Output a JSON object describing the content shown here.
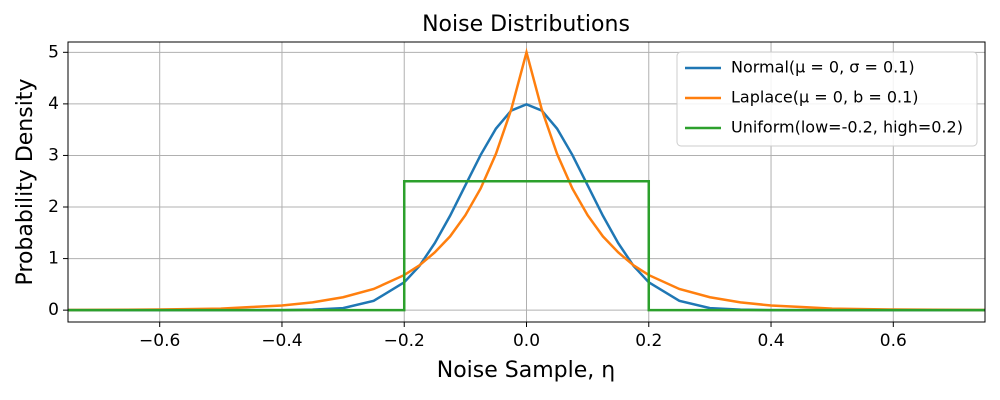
{
  "chart_data": {
    "type": "line",
    "title": "Noise Distributions",
    "x_label": "Noise Sample, η",
    "y_label": "Probability Density",
    "xlim": [
      -0.75,
      0.75
    ],
    "xticks": [
      {
        "value": -0.6,
        "label": "−0.6"
      },
      {
        "value": -0.4,
        "label": "−0.4"
      },
      {
        "value": -0.2,
        "label": "−0.2"
      },
      {
        "value": 0,
        "label": "0.0"
      },
      {
        "value": 0.2,
        "label": "0.2"
      },
      {
        "value": 0.4,
        "label": "0.4"
      },
      {
        "value": 0.6,
        "label": "0.6"
      }
    ],
    "ylim": [
      -0.23,
      5.2
    ],
    "yticks": [
      0,
      1,
      2,
      3,
      4,
      5
    ],
    "grid": true,
    "legend": "upper-right",
    "series": [
      {
        "name": "Normal(μ = 0, σ = 0.1)",
        "color": "#1f77b4",
        "x": [
          -0.75,
          -0.7,
          -0.6,
          -0.5,
          -0.45,
          -0.4,
          -0.35,
          -0.3,
          -0.25,
          -0.2,
          -0.175,
          -0.15,
          -0.125,
          -0.1,
          -0.075,
          -0.05,
          -0.025,
          0,
          0.025,
          0.05,
          0.075,
          0.1,
          0.125,
          0.15,
          0.175,
          0.2,
          0.25,
          0.3,
          0.35,
          0.4,
          0.45,
          0.5,
          0.6,
          0.7,
          0.75
        ],
        "values": [
          0,
          0,
          0,
          0,
          0,
          0,
          0.01,
          0.04,
          0.18,
          0.54,
          0.86,
          1.3,
          1.83,
          2.42,
          3.01,
          3.52,
          3.87,
          3.99,
          3.87,
          3.52,
          3.01,
          2.42,
          1.83,
          1.3,
          0.86,
          0.54,
          0.18,
          0.04,
          0.01,
          0,
          0,
          0,
          0,
          0,
          0
        ]
      },
      {
        "name": "Laplace(μ = 0, b = 0.1)",
        "color": "#ff7f0e",
        "x": [
          -0.75,
          -0.7,
          -0.6,
          -0.5,
          -0.45,
          -0.4,
          -0.35,
          -0.3,
          -0.25,
          -0.2,
          -0.175,
          -0.15,
          -0.125,
          -0.1,
          -0.075,
          -0.05,
          -0.025,
          0,
          0.025,
          0.05,
          0.075,
          0.1,
          0.125,
          0.15,
          0.175,
          0.2,
          0.25,
          0.3,
          0.35,
          0.4,
          0.45,
          0.5,
          0.6,
          0.7,
          0.75
        ],
        "values": [
          0.003,
          0.005,
          0.012,
          0.03,
          0.06,
          0.09,
          0.15,
          0.25,
          0.41,
          0.68,
          0.87,
          1.12,
          1.43,
          1.84,
          2.36,
          3.03,
          3.89,
          5,
          3.89,
          3.03,
          2.36,
          1.84,
          1.43,
          1.12,
          0.87,
          0.68,
          0.41,
          0.25,
          0.15,
          0.09,
          0.06,
          0.03,
          0.012,
          0.005,
          0.003
        ]
      },
      {
        "name": "Uniform(low=-0.2, high=0.2)",
        "color": "#2ca02c",
        "x": [
          -0.75,
          -0.2,
          -0.2,
          0.2,
          0.2,
          0.75
        ],
        "values": [
          0,
          0,
          2.5,
          2.5,
          0,
          0
        ]
      }
    ]
  }
}
